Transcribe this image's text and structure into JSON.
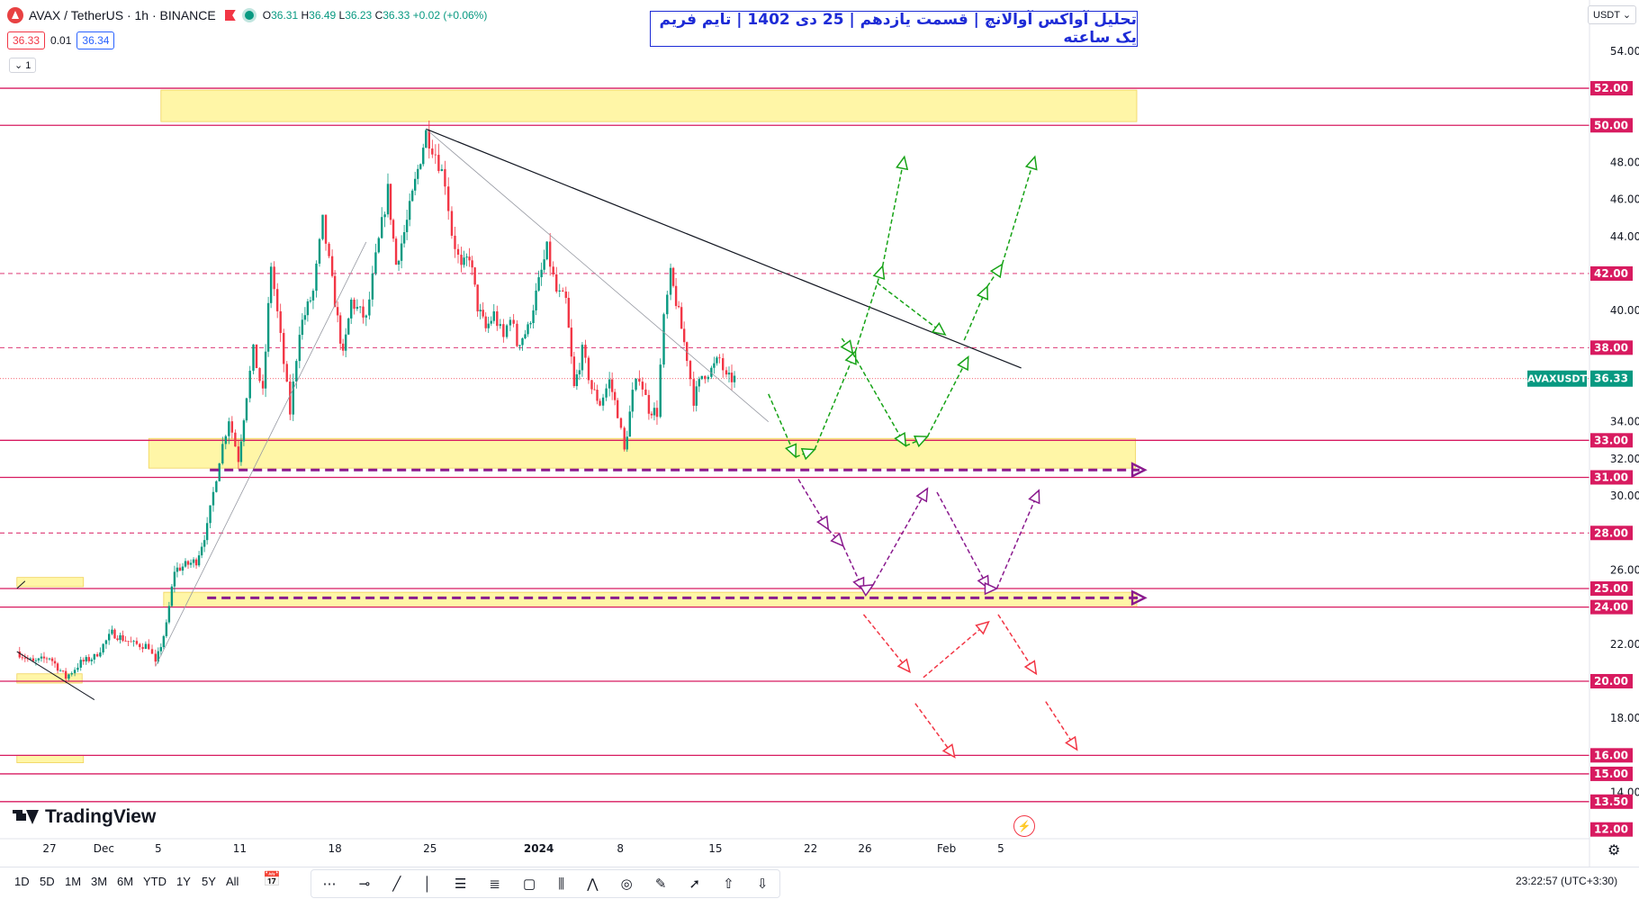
{
  "header": {
    "symbol": "AVAX / TetherUS · 1h · BINANCE",
    "open_label": "O",
    "open": "36.31",
    "high_label": "H",
    "high": "36.49",
    "low_label": "L",
    "low": "36.23",
    "close_label": "C",
    "close": "36.33",
    "change": "+0.02 (+0.06%)",
    "sell_price": "36.33",
    "spread": "0.01",
    "buy_price": "36.34",
    "indicator_count": "1"
  },
  "title": "تحلیل آواکس آوالانچ | قسمت یازدهم | 25 دی 1402 | تایم فریم یک ساعته",
  "currency": "USDT",
  "branding": "TradingView",
  "toolbar": {
    "timeframes": [
      "1D",
      "5D",
      "1M",
      "3M",
      "6M",
      "YTD",
      "1Y",
      "5Y",
      "All"
    ],
    "clock": "23:22:57 (UTC+3:30)"
  },
  "chart_data": {
    "type": "candlestick",
    "symbol": "AVAXUSDT",
    "last_price": 36.33,
    "ylim": [
      11.5,
      55.5
    ],
    "y_ticks": [
      14,
      18,
      22,
      26,
      30,
      32,
      34,
      40,
      44,
      46,
      48,
      54
    ],
    "x_ticks": [
      {
        "label": "27",
        "day": 0
      },
      {
        "label": "Dec",
        "day": 4
      },
      {
        "label": "5",
        "day": 8
      },
      {
        "label": "11",
        "day": 14
      },
      {
        "label": "18",
        "day": 21
      },
      {
        "label": "25",
        "day": 28
      },
      {
        "label": "2024",
        "day": 36
      },
      {
        "label": "8",
        "day": 42
      },
      {
        "label": "15",
        "day": 49
      },
      {
        "label": "22",
        "day": 56
      },
      {
        "label": "26",
        "day": 60
      },
      {
        "label": "Feb",
        "day": 66
      },
      {
        "label": "5",
        "day": 70
      }
    ],
    "price_path": [
      [
        -2.4,
        21.6
      ],
      [
        -1.2,
        21.0
      ],
      [
        0,
        21.3
      ],
      [
        1.2,
        20.2
      ],
      [
        2.3,
        21.0
      ],
      [
        3.3,
        21.3
      ],
      [
        4.6,
        22.6
      ],
      [
        6.2,
        22.0
      ],
      [
        7.3,
        21.9
      ],
      [
        7.8,
        20.9
      ],
      [
        8.6,
        23.0
      ],
      [
        9.2,
        26.0
      ],
      [
        10.8,
        26.5
      ],
      [
        11.6,
        28.3
      ],
      [
        12.5,
        32.0
      ],
      [
        13.2,
        34.2
      ],
      [
        13.9,
        32.0
      ],
      [
        14.5,
        35.5
      ],
      [
        15.0,
        37.8
      ],
      [
        15.7,
        35.5
      ],
      [
        16.3,
        42.5
      ],
      [
        17.0,
        38.5
      ],
      [
        17.7,
        34.5
      ],
      [
        18.4,
        39.0
      ],
      [
        19.4,
        41.0
      ],
      [
        20.1,
        44.8
      ],
      [
        20.8,
        41.5
      ],
      [
        21.6,
        37.5
      ],
      [
        22.2,
        40.5
      ],
      [
        23.3,
        39.5
      ],
      [
        24.0,
        42.8
      ],
      [
        24.9,
        46.5
      ],
      [
        25.5,
        42.5
      ],
      [
        26.3,
        44.8
      ],
      [
        27.1,
        47.6
      ],
      [
        27.7,
        49.6
      ],
      [
        28.4,
        48.5
      ],
      [
        29.1,
        47.0
      ],
      [
        29.6,
        44.2
      ],
      [
        30.3,
        42.2
      ],
      [
        30.9,
        43.0
      ],
      [
        31.5,
        40.2
      ],
      [
        32.1,
        39.0
      ],
      [
        32.7,
        39.8
      ],
      [
        33.4,
        38.5
      ],
      [
        33.9,
        39.8
      ],
      [
        34.4,
        38.2
      ],
      [
        35.2,
        39.0
      ],
      [
        36.0,
        41.5
      ],
      [
        36.6,
        43.3
      ],
      [
        37.3,
        41.0
      ],
      [
        38.0,
        40.5
      ],
      [
        38.6,
        35.8
      ],
      [
        39.2,
        37.8
      ],
      [
        39.9,
        35.8
      ],
      [
        40.5,
        35.0
      ],
      [
        41.2,
        36.2
      ],
      [
        41.8,
        34.5
      ],
      [
        42.3,
        32.4
      ],
      [
        42.9,
        35.5
      ],
      [
        43.4,
        36.5
      ],
      [
        44.1,
        34.7
      ],
      [
        44.7,
        34.5
      ],
      [
        45.2,
        39.5
      ],
      [
        45.7,
        41.9
      ],
      [
        46.3,
        39.8
      ],
      [
        46.9,
        37.5
      ],
      [
        47.4,
        35.2
      ],
      [
        48.0,
        36.5
      ],
      [
        48.7,
        36.8
      ],
      [
        49.3,
        37.4
      ],
      [
        49.8,
        36.3
      ],
      [
        50.4,
        36.33
      ]
    ],
    "zones": [
      {
        "from_day": 8.2,
        "to_day": 80.0,
        "low": 50.2,
        "high": 51.9
      },
      {
        "from_day": 7.3,
        "to_day": 79.9,
        "low": 31.5,
        "high": 33.1
      },
      {
        "from_day": 8.4,
        "to_day": 80.0,
        "low": 24.0,
        "high": 24.8
      },
      {
        "from_day": -2.4,
        "to_day": 2.4,
        "low": 19.9,
        "high": 20.4
      },
      {
        "from_day": -2.4,
        "to_day": 2.5,
        "low": 15.6,
        "high": 16.0
      },
      {
        "from_day": -2.4,
        "to_day": 2.5,
        "low": 25.1,
        "high": 25.6
      }
    ],
    "levels": [
      {
        "value": 52.0,
        "label": "52.00",
        "style": "solid"
      },
      {
        "value": 50.0,
        "label": "50.00",
        "style": "solid"
      },
      {
        "value": 42.0,
        "label": "42.00",
        "style": "dashed"
      },
      {
        "value": 38.0,
        "label": "38.00",
        "style": "dashed"
      },
      {
        "value": 33.0,
        "label": "33.00",
        "style": "solid"
      },
      {
        "value": 31.0,
        "label": "31.00",
        "style": "solid"
      },
      {
        "value": 28.0,
        "label": "28.00",
        "style": "dashed"
      },
      {
        "value": 25.0,
        "label": "25.00",
        "style": "solid"
      },
      {
        "value": 24.0,
        "label": "24.00",
        "style": "solid"
      },
      {
        "value": 20.0,
        "label": "20.00",
        "style": "solid"
      },
      {
        "value": 16.0,
        "label": "16.00",
        "style": "solid"
      },
      {
        "value": 15.0,
        "label": "15.00",
        "style": "solid"
      },
      {
        "value": 13.5,
        "label": "13.50",
        "style": "solid"
      },
      {
        "value": 12.0,
        "label": "12.00",
        "style": "none"
      }
    ],
    "trendlines": [
      {
        "color": "#131722",
        "width": 1.2,
        "points": [
          [
            27.7,
            49.8
          ],
          [
            71.5,
            36.9
          ]
        ]
      },
      {
        "color": "#9598a1",
        "width": 0.8,
        "points": [
          [
            27.7,
            49.8
          ],
          [
            52.9,
            34.0
          ]
        ]
      },
      {
        "color": "#9598a1",
        "width": 0.8,
        "points": [
          [
            7.8,
            20.8
          ],
          [
            23.3,
            43.7
          ]
        ]
      },
      {
        "color": "#131722",
        "width": 1.0,
        "points": [
          [
            -2.4,
            21.6
          ],
          [
            3.3,
            19.0
          ]
        ]
      },
      {
        "color": "#131722",
        "width": 1.0,
        "points": [
          [
            -2.4,
            25.0
          ],
          [
            -1.8,
            25.4
          ]
        ]
      }
    ],
    "horizontal_arrows": [
      {
        "value": 31.4,
        "from_day": 11.8,
        "to_day": 80.6
      },
      {
        "value": 24.5,
        "from_day": 11.6,
        "to_day": 80.6
      }
    ],
    "projections": [
      {
        "color": "#17a317",
        "points": [
          [
            52.9,
            35.5
          ],
          [
            54.9,
            32.1
          ],
          [
            56.3,
            32.5
          ],
          [
            59.3,
            37.8
          ],
          [
            61.3,
            42.4
          ],
          [
            62.9,
            48.3
          ]
        ]
      },
      {
        "color": "#17a317",
        "points": [
          [
            60.9,
            41.5
          ],
          [
            65.9,
            38.7
          ]
        ]
      },
      {
        "color": "#17a317",
        "points": [
          [
            58.3,
            38.5
          ],
          [
            59.1,
            37.7
          ],
          [
            63.0,
            32.7
          ],
          [
            64.6,
            33.2
          ],
          [
            67.6,
            37.5
          ]
        ]
      },
      {
        "color": "#17a317",
        "points": [
          [
            67.3,
            38.4
          ],
          [
            69.0,
            41.3
          ],
          [
            70.1,
            42.5
          ],
          [
            72.5,
            48.3
          ]
        ]
      },
      {
        "color": "#8a1a8e",
        "points": [
          [
            55.1,
            30.9
          ],
          [
            57.3,
            28.2
          ],
          [
            58.4,
            27.3
          ],
          [
            59.9,
            24.9
          ],
          [
            60.6,
            25.2
          ],
          [
            64.6,
            30.4
          ]
        ]
      },
      {
        "color": "#8a1a8e",
        "points": [
          [
            65.3,
            30.2
          ],
          [
            69.1,
            25.0
          ],
          [
            69.7,
            25.0
          ],
          [
            72.8,
            30.3
          ]
        ]
      },
      {
        "color": "#f23645",
        "points": [
          [
            59.9,
            23.6
          ],
          [
            63.3,
            20.5
          ]
        ]
      },
      {
        "color": "#f23645",
        "points": [
          [
            64.3,
            20.2
          ],
          [
            69.1,
            23.2
          ]
        ]
      },
      {
        "color": "#f23645",
        "points": [
          [
            69.8,
            23.6
          ],
          [
            72.6,
            20.4
          ]
        ]
      },
      {
        "color": "#f23645",
        "points": [
          [
            63.7,
            18.8
          ],
          [
            66.6,
            15.9
          ]
        ]
      },
      {
        "color": "#f23645",
        "points": [
          [
            73.3,
            18.9
          ],
          [
            75.6,
            16.3
          ]
        ]
      }
    ],
    "price_labels": {
      "symbol": "AVAXUSDT",
      "value": "36.33"
    }
  }
}
